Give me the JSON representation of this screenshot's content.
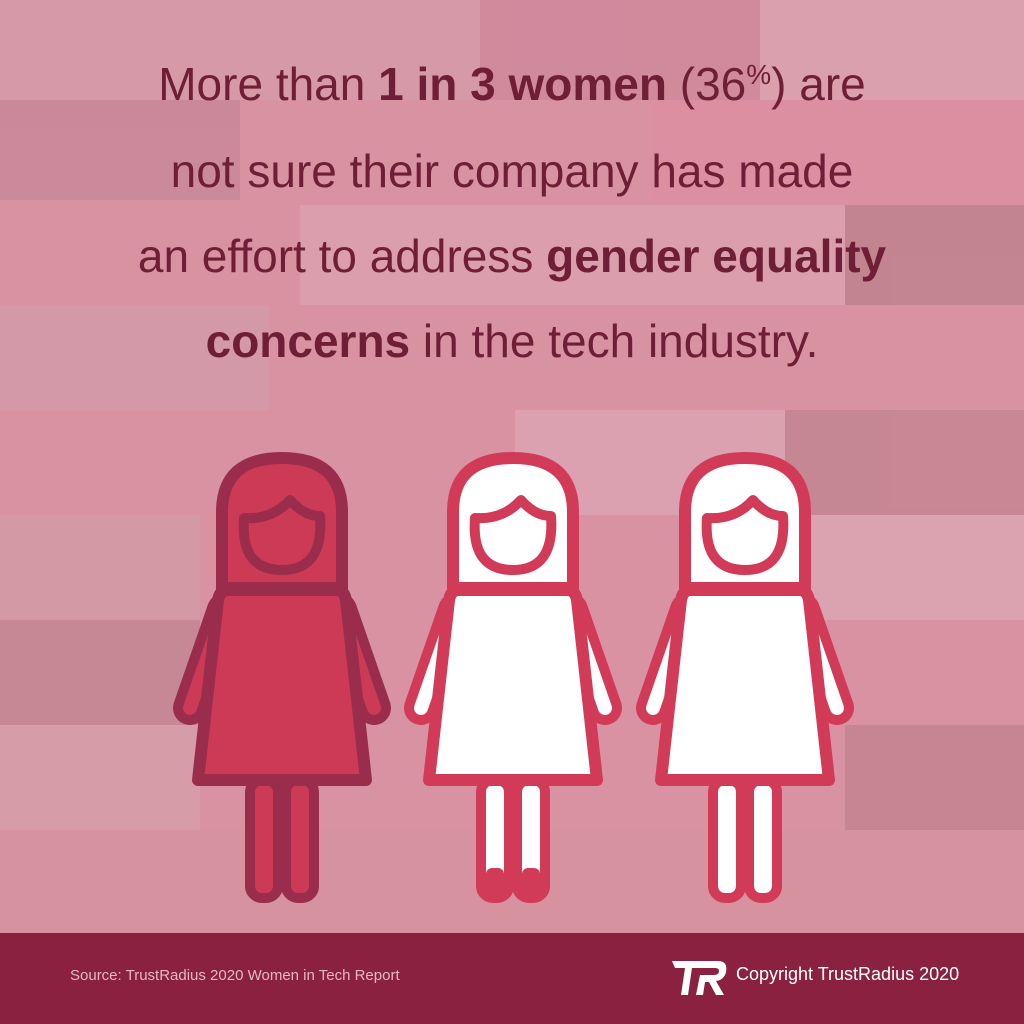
{
  "headline": {
    "lines": [
      [
        {
          "text": "More than ",
          "bold": false
        },
        {
          "text": "1 in 3 women",
          "bold": true
        },
        {
          "text": " (36",
          "bold": false
        },
        {
          "text": "%",
          "bold": false,
          "sup": true
        },
        {
          "text": ") are",
          "bold": false
        }
      ],
      [
        {
          "text": "not sure their company has made",
          "bold": false
        }
      ],
      [
        {
          "text": "an effort to address ",
          "bold": false
        },
        {
          "text": "gender equality",
          "bold": true
        }
      ],
      [
        {
          "text": "concerns",
          "bold": true
        },
        {
          "text": " in the tech industry.",
          "bold": false
        }
      ]
    ]
  },
  "footer": {
    "source": "Source: TrustRadius 2020 Women in Tech Report",
    "copyright": "Copyright TrustRadius 2020"
  }
}
